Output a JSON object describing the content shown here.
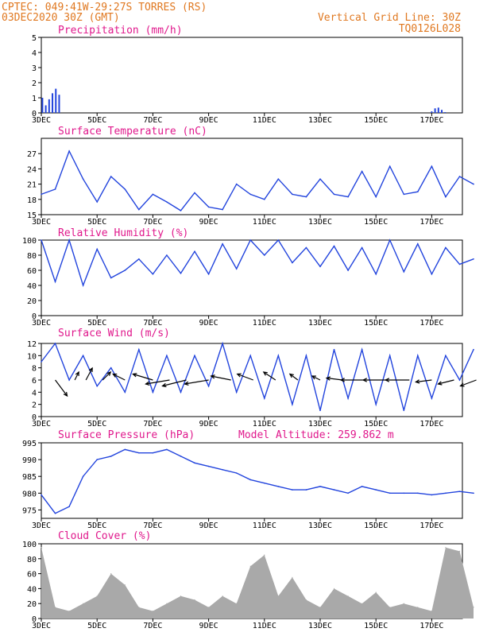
{
  "header": {
    "station": "CPTEC:   049:41W-29:27S  TORRES (RS)",
    "date": "03DEC2020 30Z (GMT)",
    "grid_note": "Vertical Grid Line: 30Z",
    "code": "TQ0126L028"
  },
  "colors": {
    "header": "#e07820",
    "title": "#e0188c",
    "line": "#2244dd",
    "cloud": "#a9a9a9",
    "arrow": "#000000"
  },
  "x_labels": [
    "3DEC",
    "5DEC",
    "7DEC",
    "9DEC",
    "11DEC",
    "13DEC",
    "15DEC",
    "17DEC"
  ],
  "chart_data": [
    {
      "id": "precip",
      "type": "bar",
      "title": "Precipitation (mm/h)",
      "ylim": [
        0,
        5
      ],
      "yticks": [
        "0",
        "1",
        "2",
        "3",
        "4",
        "5"
      ],
      "x_days": [
        0.02,
        0.08,
        0.14,
        0.2,
        0.26,
        0.32,
        7.0,
        7.06,
        7.12,
        7.18,
        7.24
      ],
      "values": [
        1.0,
        0.5,
        0.9,
        1.3,
        1.6,
        1.2,
        0.1,
        0.3,
        0.35,
        0.2,
        0.05
      ],
      "color": "#2244dd"
    },
    {
      "id": "temp",
      "type": "line",
      "title": "Surface Temperature (nC)",
      "ylim": [
        15,
        30
      ],
      "yticks": [
        "15",
        "18",
        "21",
        "24",
        "27"
      ],
      "x_days": [
        0,
        0.25,
        0.5,
        0.75,
        1,
        1.25,
        1.5,
        1.75,
        2,
        2.25,
        2.5,
        2.75,
        3,
        3.25,
        3.5,
        3.75,
        4,
        4.25,
        4.5,
        4.75,
        5,
        5.25,
        5.5,
        5.75,
        6,
        6.25,
        6.5,
        6.75,
        7,
        7.25,
        7.5,
        7.75
      ],
      "values": [
        19,
        20,
        27.5,
        22,
        17.5,
        22.5,
        20,
        16,
        19,
        17.5,
        15.8,
        19.3,
        16.5,
        16,
        21,
        19,
        18,
        22,
        19,
        18.5,
        22,
        19,
        18.5,
        23.5,
        18.5,
        24.5,
        19,
        19.5,
        24.5,
        18.5,
        22.5,
        21
      ],
      "color": "#2244dd"
    },
    {
      "id": "rh",
      "type": "line",
      "title": "Relative Humidity (%)",
      "ylim": [
        0,
        100
      ],
      "yticks": [
        "0",
        "20",
        "40",
        "60",
        "80",
        "100"
      ],
      "x_days": [
        0,
        0.25,
        0.5,
        0.75,
        1,
        1.25,
        1.5,
        1.75,
        2,
        2.25,
        2.5,
        2.75,
        3,
        3.25,
        3.5,
        3.75,
        4,
        4.25,
        4.5,
        4.75,
        5,
        5.25,
        5.5,
        5.75,
        6,
        6.25,
        6.5,
        6.75,
        7,
        7.25,
        7.5,
        7.75
      ],
      "values": [
        100,
        45,
        100,
        40,
        88,
        50,
        60,
        75,
        55,
        80,
        56,
        85,
        55,
        95,
        62,
        100,
        80,
        100,
        70,
        90,
        65,
        92,
        60,
        90,
        55,
        100,
        58,
        95,
        55,
        90,
        68,
        75
      ],
      "color": "#2244dd"
    },
    {
      "id": "wind",
      "type": "line",
      "title": "Surface Wind (m/s)",
      "ylim": [
        0,
        12
      ],
      "yticks": [
        "0",
        "2",
        "4",
        "6",
        "8",
        "10",
        "12"
      ],
      "x_days": [
        0,
        0.25,
        0.5,
        0.75,
        1,
        1.25,
        1.5,
        1.75,
        2,
        2.25,
        2.5,
        2.75,
        3,
        3.25,
        3.5,
        3.75,
        4,
        4.25,
        4.5,
        4.75,
        5,
        5.25,
        5.5,
        5.75,
        6,
        6.25,
        6.5,
        6.75,
        7,
        7.25,
        7.5,
        7.75
      ],
      "values": [
        9,
        12,
        6,
        10,
        5,
        8,
        4,
        11,
        4,
        10,
        4,
        10,
        5,
        12,
        4,
        10,
        3,
        10,
        2,
        10,
        1,
        11,
        3,
        11,
        2,
        10,
        1,
        10,
        3,
        10,
        6,
        11
      ],
      "arrows": {
        "x_days": [
          0.25,
          0.6,
          0.8,
          1.1,
          1.5,
          2.0,
          2.3,
          2.6,
          3.0,
          3.4,
          3.8,
          4.2,
          4.6,
          5.0,
          5.4,
          5.8,
          6.2,
          6.6,
          7.0,
          7.4,
          7.8
        ],
        "u": [
          1.5,
          0.5,
          0.8,
          1.0,
          -1.5,
          -2.5,
          -3,
          -3,
          -3,
          -2.5,
          -2,
          -1.5,
          -1,
          -1,
          -2,
          -3,
          -3,
          -3,
          -2,
          -2,
          -2
        ],
        "v": [
          -4,
          2,
          3,
          2,
          1.5,
          1.5,
          -1,
          -1.5,
          -1,
          1,
          1.5,
          2,
          1.5,
          1,
          0.5,
          0,
          0,
          0,
          -0.5,
          -1,
          -1.5
        ]
      },
      "color": "#2244dd"
    },
    {
      "id": "press",
      "type": "line",
      "title": "Surface Pressure (hPa)",
      "annotation": "Model Altitude: 259.862 m",
      "ylim": [
        972.5,
        995
      ],
      "yticks": [
        "975",
        "980",
        "985",
        "990",
        "995"
      ],
      "x_days": [
        0,
        0.25,
        0.5,
        0.75,
        1,
        1.25,
        1.5,
        1.75,
        2,
        2.25,
        2.5,
        2.75,
        3,
        3.25,
        3.5,
        3.75,
        4,
        4.25,
        4.5,
        4.75,
        5,
        5.25,
        5.5,
        5.75,
        6,
        6.25,
        6.5,
        6.75,
        7,
        7.25,
        7.5,
        7.75
      ],
      "values": [
        979.5,
        974,
        976,
        985,
        990,
        991,
        993,
        992,
        992,
        993,
        991,
        989,
        988,
        987,
        986,
        984,
        983,
        982,
        981,
        981,
        982,
        981,
        980,
        982,
        981,
        980,
        980,
        980,
        979.5,
        980,
        980.5,
        980
      ],
      "color": "#2244dd"
    },
    {
      "id": "cloud",
      "type": "area",
      "title": "Cloud Cover (%)",
      "ylim": [
        0,
        100
      ],
      "yticks": [
        "0",
        "20",
        "40",
        "60",
        "80",
        "100"
      ],
      "x_days": [
        0,
        0.25,
        0.5,
        0.75,
        1,
        1.25,
        1.5,
        1.75,
        2,
        2.25,
        2.5,
        2.75,
        3,
        3.25,
        3.5,
        3.75,
        4,
        4.25,
        4.5,
        4.75,
        5,
        5.25,
        5.5,
        5.75,
        6,
        6.25,
        6.5,
        6.75,
        7,
        7.25,
        7.5,
        7.75
      ],
      "values": [
        95,
        15,
        10,
        20,
        30,
        60,
        45,
        15,
        10,
        20,
        30,
        25,
        15,
        30,
        20,
        70,
        85,
        30,
        55,
        25,
        15,
        40,
        30,
        20,
        35,
        15,
        20,
        15,
        10,
        95,
        90,
        15
      ],
      "color": "#a9a9a9"
    }
  ]
}
